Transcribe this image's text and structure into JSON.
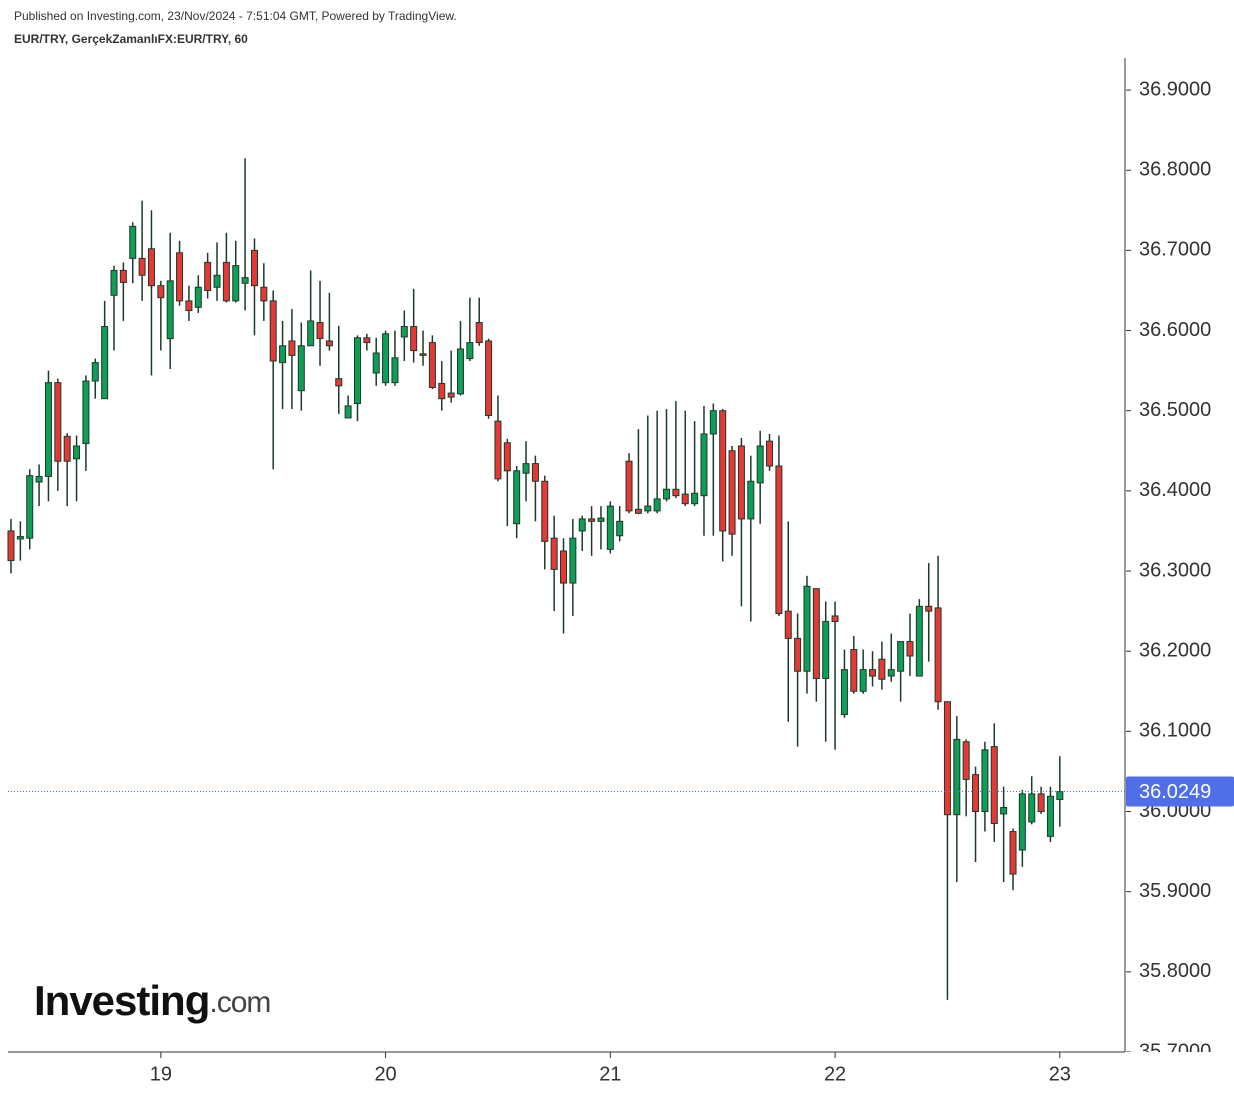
{
  "chart_data": {
    "type": "candlestick",
    "source": "Published on Investing.com, 23/Nov/2024 - 7:51:04 GMT, Powered by TradingView.",
    "title": "EUR/TRY, GerçekZamanlıFX:EUR/TRY, 60",
    "watermark": "Investing",
    "watermark_suffix": ".com",
    "x": [
      18.3333,
      18.375,
      18.4167,
      18.4583,
      18.5,
      18.5417,
      18.5833,
      18.625,
      18.6667,
      18.7083,
      18.75,
      18.7917,
      18.8333,
      18.875,
      18.9167,
      18.9583,
      19,
      19.0417,
      19.0833,
      19.125,
      19.1667,
      19.2083,
      19.25,
      19.2917,
      19.3333,
      19.375,
      19.4167,
      19.4583,
      19.5,
      19.5417,
      19.5833,
      19.625,
      19.6667,
      19.7083,
      19.75,
      19.7917,
      19.8333,
      19.875,
      19.9167,
      19.9583,
      20,
      20.0417,
      20.0833,
      20.125,
      20.1667,
      20.2083,
      20.25,
      20.2917,
      20.3333,
      20.375,
      20.4167,
      20.4583,
      20.5,
      20.5417,
      20.5833,
      20.625,
      20.6667,
      20.7083,
      20.75,
      20.7917,
      20.8333,
      20.875,
      20.9167,
      20.9583,
      21,
      21.0417,
      21.0833,
      21.125,
      21.1667,
      21.2083,
      21.25,
      21.2917,
      21.3333,
      21.375,
      21.4167,
      21.4583,
      21.5,
      21.5417,
      21.5833,
      21.625,
      21.6667,
      21.7083,
      21.75,
      21.7917,
      21.8333,
      21.875,
      21.9167,
      21.9583,
      22,
      22.0417,
      22.0833,
      22.125,
      22.1667,
      22.2083,
      22.25,
      22.2917,
      22.3333,
      22.375,
      22.4167,
      22.4583,
      22.5,
      22.5417,
      22.5833,
      22.625,
      22.6667,
      22.7083,
      22.75,
      22.7917,
      22.8333,
      22.875,
      22.9167,
      22.9583,
      23
    ],
    "open": [
      36.35,
      36.34,
      36.341,
      36.411,
      36.418,
      36.535,
      36.468,
      36.44,
      36.459,
      36.537,
      36.515,
      36.644,
      36.675,
      36.69,
      36.69,
      36.702,
      36.656,
      36.59,
      36.697,
      36.637,
      36.629,
      36.685,
      36.654,
      36.685,
      36.637,
      36.659,
      36.7,
      36.654,
      36.637,
      36.56,
      36.587,
      36.525,
      36.581,
      36.61,
      36.587,
      36.54,
      36.491,
      36.509,
      36.591,
      36.547,
      36.535,
      36.535,
      36.592,
      36.605,
      36.571,
      36.585,
      36.534,
      36.522,
      36.521,
      36.565,
      36.61,
      36.587,
      36.487,
      36.46,
      36.359,
      36.422,
      36.434,
      36.412,
      36.341,
      36.325,
      36.285,
      36.35,
      36.365,
      36.362,
      36.327,
      36.344,
      36.437,
      36.377,
      36.375,
      36.375,
      36.39,
      36.402,
      36.396,
      36.384,
      36.394,
      36.471,
      36.5,
      36.45,
      36.456,
      36.365,
      36.41,
      36.462,
      36.431,
      36.25,
      36.216,
      36.175,
      36.278,
      36.166,
      36.244,
      36.121,
      36.202,
      36.15,
      36.177,
      36.19,
      36.169,
      36.175,
      36.212,
      36.169,
      36.256,
      36.254,
      36.137,
      35.996,
      36.087,
      36.046,
      36.0,
      36.081,
      35.997,
      35.975,
      35.952,
      35.987,
      36.022,
      35.969,
      36.015
    ],
    "high": [
      36.365,
      36.362,
      36.427,
      36.433,
      36.55,
      36.54,
      36.472,
      36.469,
      36.544,
      36.565,
      36.637,
      36.681,
      36.685,
      36.735,
      36.762,
      36.75,
      36.662,
      36.722,
      36.712,
      36.656,
      36.669,
      36.697,
      36.71,
      36.722,
      36.712,
      36.815,
      36.715,
      36.684,
      36.65,
      36.612,
      36.627,
      36.61,
      36.675,
      36.662,
      36.647,
      36.606,
      36.519,
      36.594,
      36.596,
      36.591,
      36.6,
      36.6,
      36.625,
      36.652,
      36.6,
      36.594,
      36.562,
      36.575,
      36.612,
      36.641,
      36.641,
      36.59,
      36.519,
      36.465,
      36.431,
      36.462,
      36.444,
      36.419,
      36.369,
      36.341,
      36.365,
      36.369,
      36.381,
      36.381,
      36.387,
      36.381,
      36.447,
      36.477,
      36.494,
      36.5,
      36.502,
      36.512,
      36.5,
      36.487,
      36.506,
      36.509,
      36.502,
      36.456,
      36.466,
      36.444,
      36.475,
      36.471,
      36.469,
      36.362,
      36.247,
      36.294,
      36.278,
      36.262,
      36.262,
      36.202,
      36.219,
      36.202,
      36.2,
      36.212,
      36.222,
      36.212,
      36.247,
      36.265,
      36.31,
      36.319,
      36.137,
      36.119,
      36.09,
      36.056,
      36.087,
      36.11,
      36.031,
      35.979,
      36.027,
      36.044,
      36.031,
      36.031,
      36.069
    ],
    "low": [
      36.297,
      36.313,
      36.327,
      36.381,
      36.387,
      36.4,
      36.381,
      36.387,
      36.425,
      36.515,
      36.515,
      36.575,
      36.612,
      36.659,
      36.637,
      36.544,
      36.575,
      36.552,
      36.631,
      36.612,
      36.622,
      36.64,
      36.637,
      36.635,
      36.635,
      36.625,
      36.594,
      36.612,
      36.427,
      36.502,
      36.502,
      36.5,
      36.581,
      36.556,
      36.575,
      36.496,
      36.491,
      36.487,
      36.575,
      36.531,
      36.531,
      36.531,
      36.562,
      36.56,
      36.556,
      36.527,
      36.5,
      36.51,
      36.519,
      36.562,
      36.581,
      36.49,
      36.412,
      36.356,
      36.341,
      36.387,
      36.362,
      36.302,
      36.25,
      36.222,
      36.244,
      36.325,
      36.319,
      36.327,
      36.322,
      36.337,
      36.372,
      36.371,
      36.372,
      36.372,
      36.387,
      36.391,
      36.381,
      36.381,
      36.344,
      36.344,
      36.312,
      36.319,
      36.256,
      36.237,
      36.359,
      36.425,
      36.244,
      36.112,
      36.081,
      36.147,
      36.137,
      36.087,
      36.077,
      36.117,
      36.147,
      36.147,
      36.156,
      36.152,
      36.162,
      36.137,
      36.169,
      36.169,
      36.187,
      36.127,
      35.765,
      35.912,
      35.994,
      35.937,
      35.975,
      35.962,
      35.912,
      35.902,
      35.931,
      35.984,
      35.997,
      35.962,
      35.981
    ],
    "close": [
      36.313,
      36.343,
      36.419,
      36.418,
      36.535,
      36.437,
      36.437,
      36.456,
      36.537,
      36.56,
      36.605,
      36.675,
      36.66,
      36.73,
      36.669,
      36.656,
      36.641,
      36.662,
      36.637,
      36.625,
      36.654,
      36.65,
      36.669,
      36.637,
      36.681,
      36.666,
      36.656,
      36.637,
      36.562,
      36.581,
      36.569,
      36.581,
      36.612,
      36.59,
      36.581,
      36.531,
      36.506,
      36.591,
      36.585,
      36.572,
      36.596,
      36.566,
      36.605,
      36.575,
      36.569,
      36.529,
      36.515,
      36.517,
      36.577,
      36.585,
      36.585,
      36.494,
      36.415,
      36.425,
      36.425,
      36.434,
      36.412,
      36.337,
      36.302,
      36.285,
      36.341,
      36.365,
      36.362,
      36.366,
      36.381,
      36.362,
      36.375,
      36.372,
      36.381,
      36.39,
      36.402,
      36.394,
      36.384,
      36.397,
      36.471,
      36.5,
      36.35,
      36.346,
      36.365,
      36.412,
      36.456,
      36.431,
      36.247,
      36.216,
      36.175,
      36.281,
      36.166,
      36.237,
      36.237,
      36.177,
      36.15,
      36.177,
      36.169,
      36.165,
      36.177,
      36.212,
      36.194,
      36.256,
      36.25,
      36.137,
      35.996,
      36.09,
      36.04,
      36.0,
      36.077,
      35.985,
      36.005,
      35.922,
      36.022,
      36.022,
      36.0,
      36.019,
      36.0249
    ],
    "up_color": "#0f9d58",
    "down_color": "#e53935",
    "wick_color": "#1c3a2a",
    "last_price": 36.0249,
    "last_price_color": "#4f6ee8",
    "xlim": [
      18.32,
      23.29
    ],
    "ylim": [
      35.7,
      36.94
    ],
    "xticks": [
      19,
      20,
      21,
      22,
      23
    ],
    "yticks": [
      {
        "value": 35.7,
        "label": "35.7000"
      },
      {
        "value": 35.8,
        "label": "35.8000"
      },
      {
        "value": 35.9,
        "label": "35.9000"
      },
      {
        "value": 36.0,
        "label": "36.0000"
      },
      {
        "value": 36.1,
        "label": "36.1000"
      },
      {
        "value": 36.2,
        "label": "36.2000"
      },
      {
        "value": 36.3,
        "label": "36.3000"
      },
      {
        "value": 36.4,
        "label": "36.4000"
      },
      {
        "value": 36.5,
        "label": "36.5000"
      },
      {
        "value": 36.6,
        "label": "36.6000"
      },
      {
        "value": 36.7,
        "label": "36.7000"
      },
      {
        "value": 36.8,
        "label": "36.8000"
      },
      {
        "value": 36.9,
        "label": "36.9000"
      }
    ],
    "y_axis_side": "right"
  }
}
